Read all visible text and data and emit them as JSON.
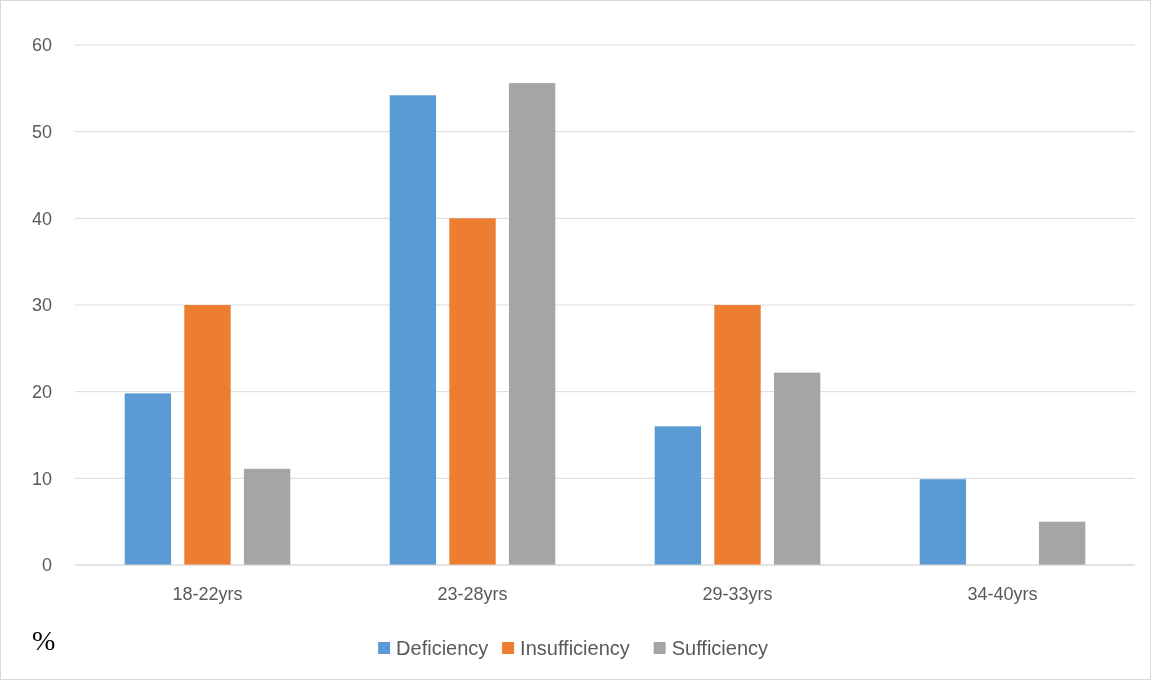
{
  "chart_data": {
    "type": "bar",
    "ylabel": "%",
    "categories": [
      "18-22yrs",
      "23-28yrs",
      "29-33yrs",
      "34-40yrs"
    ],
    "series": [
      {
        "name": "Deficiency",
        "color": "#5b9bd5",
        "values": [
          19.8,
          54.2,
          16.0,
          9.9
        ]
      },
      {
        "name": "Insufficiency",
        "color": "#ed7d31",
        "values": [
          30,
          40,
          30,
          0
        ]
      },
      {
        "name": "Sufficiency",
        "color": "#a5a5a5",
        "values": [
          11.1,
          55.6,
          22.2,
          5.0
        ]
      }
    ],
    "ylim": [
      0,
      60
    ],
    "yticks": [
      0,
      10,
      20,
      30,
      40,
      50,
      60
    ],
    "grid": "y",
    "legend": "bottom"
  }
}
